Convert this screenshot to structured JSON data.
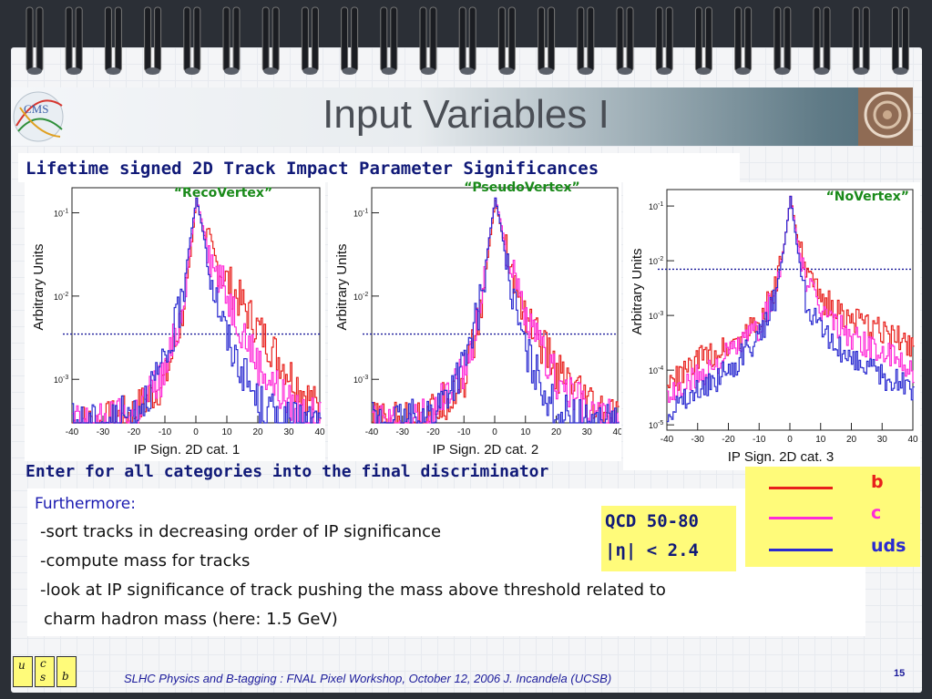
{
  "title": "Input Variables I",
  "subtitle": "Lifetime signed 2D Track Impact Parameter Significances",
  "colors": {
    "b": "#e8201c",
    "c": "#ff2ad8",
    "uds": "#2a2ad0",
    "text_blue": "#111a78",
    "highlight": "#fffb7a"
  },
  "chart_data": [
    {
      "type": "line",
      "title": "“RecoVertex”",
      "xlabel": "IP Sign. 2D cat. 1",
      "ylabel": "Arbitrary Units",
      "xlim": [
        -40,
        40
      ],
      "x_ticks": [
        "-40",
        "-30",
        "-20",
        "-10",
        "0",
        "10",
        "20",
        "30",
        "40"
      ],
      "y_scale": "log",
      "ylim": [
        0.0003,
        0.2
      ],
      "y_ticks": [
        "10-3",
        "10-2",
        "10-1"
      ],
      "x": [
        -40,
        -30,
        -20,
        -10,
        -5,
        -2,
        0,
        2,
        5,
        10,
        20,
        30,
        40
      ],
      "series": [
        {
          "name": "b",
          "values": [
            0.0003,
            0.0003,
            0.0004,
            0.001,
            0.005,
            0.03,
            0.15,
            0.06,
            0.03,
            0.015,
            0.004,
            0.0012,
            0.0004
          ]
        },
        {
          "name": "c",
          "values": [
            0.0003,
            0.0003,
            0.0004,
            0.0012,
            0.006,
            0.04,
            0.15,
            0.07,
            0.025,
            0.01,
            0.0015,
            0.0005,
            0.0003
          ]
        },
        {
          "name": "uds",
          "values": [
            0.0003,
            0.0003,
            0.0004,
            0.0015,
            0.008,
            0.05,
            0.15,
            0.06,
            0.015,
            0.003,
            0.0005,
            0.0003,
            0.0003
          ]
        }
      ]
    },
    {
      "type": "line",
      "title": "“PseudoVertex”",
      "xlabel": "IP Sign. 2D cat. 2",
      "ylabel": "Arbitrary Units",
      "xlim": [
        -40,
        40
      ],
      "x_ticks": [
        "-40",
        "-30",
        "-20",
        "-10",
        "0",
        "10",
        "20",
        "30",
        "40"
      ],
      "y_scale": "log",
      "ylim": [
        0.0003,
        0.2
      ],
      "y_ticks": [
        "10-3",
        "10-2",
        "10-1"
      ],
      "x": [
        -40,
        -30,
        -20,
        -10,
        -5,
        -2,
        0,
        2,
        5,
        10,
        20,
        30,
        40
      ],
      "series": [
        {
          "name": "b",
          "values": [
            0.0003,
            0.0003,
            0.0004,
            0.001,
            0.006,
            0.04,
            0.14,
            0.06,
            0.02,
            0.006,
            0.0012,
            0.0005,
            0.0003
          ]
        },
        {
          "name": "c",
          "values": [
            0.0003,
            0.0003,
            0.0004,
            0.0012,
            0.007,
            0.05,
            0.15,
            0.07,
            0.02,
            0.005,
            0.001,
            0.0004,
            0.0003
          ]
        },
        {
          "name": "uds",
          "values": [
            0.0003,
            0.0003,
            0.0004,
            0.0015,
            0.008,
            0.05,
            0.15,
            0.06,
            0.012,
            0.002,
            0.0004,
            0.0003,
            0.0003
          ]
        }
      ]
    },
    {
      "type": "line",
      "title": "“NoVertex”",
      "xlabel": "IP Sign. 2D cat. 3",
      "ylabel": "Arbitrary Units",
      "xlim": [
        -40,
        40
      ],
      "x_ticks": [
        "-40",
        "-30",
        "-20",
        "-10",
        "0",
        "10",
        "20",
        "30",
        "40"
      ],
      "y_scale": "log",
      "ylim": [
        8e-06,
        0.2
      ],
      "y_ticks": [
        "10-5",
        "10-4",
        "10-3",
        "10-2",
        "10-1"
      ],
      "x": [
        -40,
        -30,
        -20,
        -10,
        -5,
        -2,
        0,
        2,
        5,
        10,
        20,
        30,
        40
      ],
      "series": [
        {
          "name": "b",
          "values": [
            5e-05,
            0.00015,
            0.0003,
            0.0008,
            0.003,
            0.02,
            0.15,
            0.03,
            0.006,
            0.002,
            0.0008,
            0.0005,
            0.0003
          ]
        },
        {
          "name": "c",
          "values": [
            3e-05,
            8e-05,
            0.0002,
            0.0006,
            0.0025,
            0.02,
            0.15,
            0.025,
            0.004,
            0.0012,
            0.0004,
            0.0002,
            0.0001
          ]
        },
        {
          "name": "uds",
          "values": [
            2e-05,
            4e-05,
            0.0001,
            0.0004,
            0.002,
            0.02,
            0.15,
            0.02,
            0.002,
            0.0005,
            0.00015,
            8e-05,
            4e-05
          ]
        }
      ]
    }
  ],
  "enter_text": "Enter for all categories into the final discriminator",
  "furthermore": "Furthermore:",
  "bullets": [
    "-sort tracks in decreasing order of IP significance",
    "-compute mass for tracks",
    "-look at IP significance of track pushing the mass above threshold related to",
    " charm hadron mass (here: 1.5 GeV)"
  ],
  "qcd": {
    "line1": "QCD 50-80",
    "line2": "|η| < 2.4"
  },
  "legend": [
    {
      "label": "b",
      "color": "#e8201c"
    },
    {
      "label": "c",
      "color": "#ff2ad8"
    },
    {
      "label": "uds",
      "color": "#2a2ad0"
    }
  ],
  "footer_logo": {
    "u": "u",
    "c": "c",
    "s": "s",
    "b": "b"
  },
  "footer": "SLHC Physics and B-tagging : FNAL Pixel Workshop, October 12, 2006   J. Incandela (UCSB)",
  "page_number": "15"
}
